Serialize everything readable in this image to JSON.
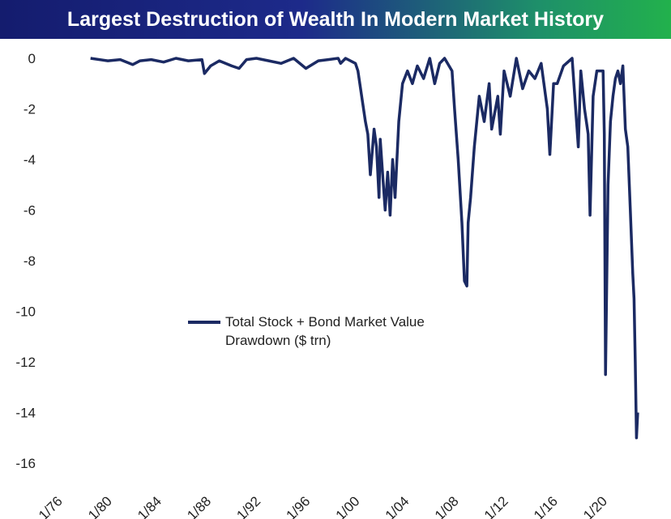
{
  "title": "Largest Destruction of Wealth In Modern Market History",
  "colors": {
    "line": "#1b2a63",
    "title_start": "#141c6e",
    "title_end": "#22b14c"
  },
  "chart_data": {
    "type": "line",
    "title": "Largest Destruction of Wealth In Modern Market History",
    "xlabel": "",
    "ylabel": "",
    "x_ticks": [
      "1/76",
      "1/80",
      "1/84",
      "1/88",
      "1/92",
      "1/96",
      "1/00",
      "1/04",
      "1/08",
      "1/12",
      "1/16",
      "1/20"
    ],
    "y_ticks": [
      0,
      -2,
      -4,
      -6,
      -8,
      -10,
      -12,
      -14,
      -16
    ],
    "xlim": [
      1976.0,
      2023.0
    ],
    "ylim": [
      -16,
      0
    ],
    "grid": false,
    "legend_position": "middle",
    "series": [
      {
        "name": "Total Stock + Bond Market Value Drawdown ($ trn)",
        "x": [
          1978.6,
          1980.0,
          1981.0,
          1982.0,
          1982.6,
          1983.5,
          1984.5,
          1985.5,
          1986.5,
          1987.6,
          1987.8,
          1988.3,
          1989.0,
          1990.0,
          1990.6,
          1991.2,
          1992.0,
          1993.0,
          1994.0,
          1994.5,
          1995.0,
          1996.0,
          1997.0,
          1997.8,
          1998.6,
          1998.8,
          1999.2,
          2000.0,
          2000.2,
          2000.5,
          2000.8,
          2001.0,
          2001.2,
          2001.5,
          2001.7,
          2001.9,
          2002.0,
          2002.2,
          2002.4,
          2002.6,
          2002.8,
          2003.0,
          2003.2,
          2003.5,
          2003.8,
          2004.2,
          2004.6,
          2005.0,
          2005.5,
          2006.0,
          2006.4,
          2006.8,
          2007.2,
          2007.8,
          2008.0,
          2008.3,
          2008.6,
          2008.8,
          2009.0,
          2009.1,
          2009.3,
          2009.6,
          2010.0,
          2010.4,
          2010.8,
          2011.0,
          2011.5,
          2011.7,
          2012.0,
          2012.5,
          2013.0,
          2013.5,
          2014.0,
          2014.5,
          2015.0,
          2015.5,
          2015.7,
          2016.0,
          2016.3,
          2016.8,
          2017.5,
          2018.0,
          2018.2,
          2018.5,
          2018.8,
          2018.95,
          2019.2,
          2019.5,
          2020.0,
          2020.1,
          2020.2,
          2020.4,
          2020.6,
          2020.8,
          2021.0,
          2021.2,
          2021.4,
          2021.6,
          2021.8,
          2022.0,
          2022.2,
          2022.4,
          2022.5,
          2022.6,
          2022.7,
          2022.8
        ],
        "y": [
          0,
          -0.1,
          -0.05,
          -0.25,
          -0.1,
          -0.05,
          -0.15,
          0,
          -0.1,
          -0.05,
          -0.6,
          -0.3,
          -0.1,
          -0.3,
          -0.4,
          -0.05,
          0,
          -0.1,
          -0.2,
          -0.1,
          0,
          -0.4,
          -0.1,
          -0.05,
          0,
          -0.2,
          0,
          -0.2,
          -0.5,
          -1.5,
          -2.5,
          -3.0,
          -4.6,
          -2.8,
          -3.5,
          -5.5,
          -3.2,
          -4.6,
          -6.0,
          -4.5,
          -6.2,
          -4.0,
          -5.5,
          -2.5,
          -1.0,
          -0.5,
          -1.0,
          -0.3,
          -0.8,
          0,
          -1.0,
          -0.2,
          0,
          -0.5,
          -2.0,
          -4.0,
          -6.5,
          -8.8,
          -9.0,
          -6.5,
          -5.5,
          -3.5,
          -1.5,
          -2.5,
          -1.0,
          -2.8,
          -1.5,
          -3.0,
          -0.5,
          -1.5,
          0,
          -1.2,
          -0.5,
          -0.8,
          -0.2,
          -2.0,
          -3.8,
          -1.0,
          -1.0,
          -0.3,
          0,
          -3.5,
          -0.5,
          -2.0,
          -3.0,
          -6.2,
          -1.5,
          -0.5,
          -0.5,
          -3.0,
          -12.5,
          -5.0,
          -2.5,
          -1.5,
          -0.8,
          -0.5,
          -1.0,
          -0.3,
          -2.8,
          -3.5,
          -6.0,
          -8.5,
          -9.5,
          -12.0,
          -15.0,
          -14.0
        ]
      }
    ]
  }
}
